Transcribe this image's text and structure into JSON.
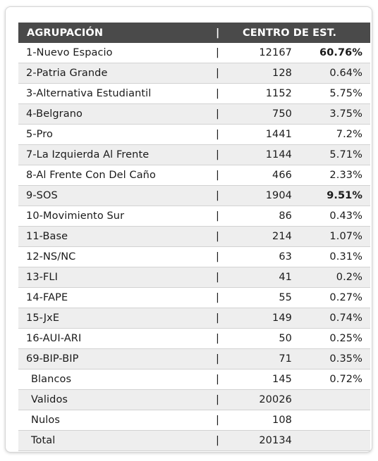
{
  "header": {
    "col_group": "AGRUPACIÓN",
    "separator": "|",
    "col_center": "CENTRO DE EST."
  },
  "rows": [
    {
      "name": "1-Nuevo Espacio",
      "sep": "|",
      "votes": "12167",
      "pct": "60.76%"
    },
    {
      "name": "2-Patria Grande",
      "sep": "|",
      "votes": "128",
      "pct": "0.64%"
    },
    {
      "name": "3-Alternativa Estudiantil",
      "sep": "|",
      "votes": "1152",
      "pct": "5.75%"
    },
    {
      "name": "4-Belgrano",
      "sep": "|",
      "votes": "750",
      "pct": "3.75%"
    },
    {
      "name": "5-Pro",
      "sep": "|",
      "votes": "1441",
      "pct": "7.2%"
    },
    {
      "name": "7-La Izquierda Al Frente",
      "sep": "|",
      "votes": "1144",
      "pct": "5.71%"
    },
    {
      "name": "8-Al Frente Con Del Caño",
      "sep": "|",
      "votes": "466",
      "pct": "2.33%"
    },
    {
      "name": "9-SOS",
      "sep": "|",
      "votes": "1904",
      "pct": "9.51%"
    },
    {
      "name": "10-Movimiento Sur",
      "sep": "|",
      "votes": "86",
      "pct": "0.43%"
    },
    {
      "name": "11-Base",
      "sep": "|",
      "votes": "214",
      "pct": "1.07%"
    },
    {
      "name": "12-NS/NC",
      "sep": "|",
      "votes": "63",
      "pct": "0.31%"
    },
    {
      "name": "13-FLI",
      "sep": "|",
      "votes": "41",
      "pct": "0.2%"
    },
    {
      "name": "14-FAPE",
      "sep": "|",
      "votes": "55",
      "pct": "0.27%"
    },
    {
      "name": "15-JxE",
      "sep": "|",
      "votes": "149",
      "pct": "0.74%"
    },
    {
      "name": "16-AUI-ARI",
      "sep": "|",
      "votes": "50",
      "pct": "0.25%"
    },
    {
      "name": "69-BIP-BIP",
      "sep": "|",
      "votes": "71",
      "pct": "0.35%"
    },
    {
      "name": "Blancos",
      "sep": "|",
      "votes": "145",
      "pct": "0.72%"
    },
    {
      "name": "Validos",
      "sep": "|",
      "votes": "20026",
      "pct": ""
    },
    {
      "name": "Nulos",
      "sep": "|",
      "votes": "108",
      "pct": ""
    },
    {
      "name": "Total",
      "sep": "|",
      "votes": "20134",
      "pct": ""
    }
  ]
}
